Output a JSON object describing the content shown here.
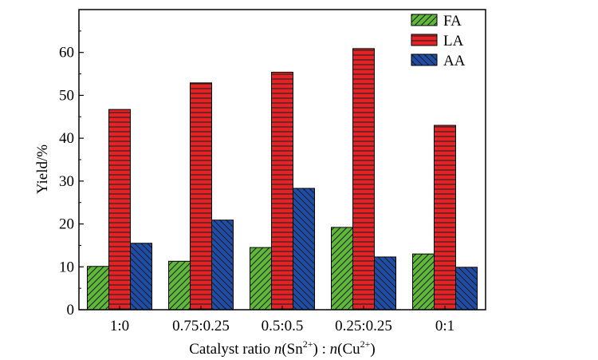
{
  "chart_data": {
    "type": "bar",
    "categories": [
      "1:0",
      "0.75:0.25",
      "0.5:0.5",
      "0.25:0.25",
      "0:1"
    ],
    "series": [
      {
        "name": "FA",
        "values": [
          10.1,
          11.3,
          14.5,
          19.2,
          13.0
        ],
        "color": "#5fb83a",
        "pattern": "diagonal-right"
      },
      {
        "name": "LA",
        "values": [
          46.7,
          52.9,
          55.4,
          60.9,
          43.0
        ],
        "color": "#e32426",
        "pattern": "horizontal"
      },
      {
        "name": "AA",
        "values": [
          15.5,
          20.9,
          28.3,
          12.3,
          9.9
        ],
        "color": "#1f4ea8",
        "pattern": "diagonal-left"
      }
    ],
    "ylabel": "Yield/%",
    "xlabel": {
      "prefix": "Catalyst ratio ",
      "n1": "n",
      "sn_open": "(Sn",
      "sn_sup": "2+",
      "sn_close": ")",
      "colon": " : ",
      "n2": "n",
      "cu_open": "(Cu",
      "cu_sup": "2+",
      "cu_close": ")"
    },
    "ylim": [
      0,
      70
    ],
    "yticks": [
      0,
      10,
      20,
      30,
      40,
      50,
      60
    ],
    "legend_position": "top-right",
    "grid": false
  }
}
